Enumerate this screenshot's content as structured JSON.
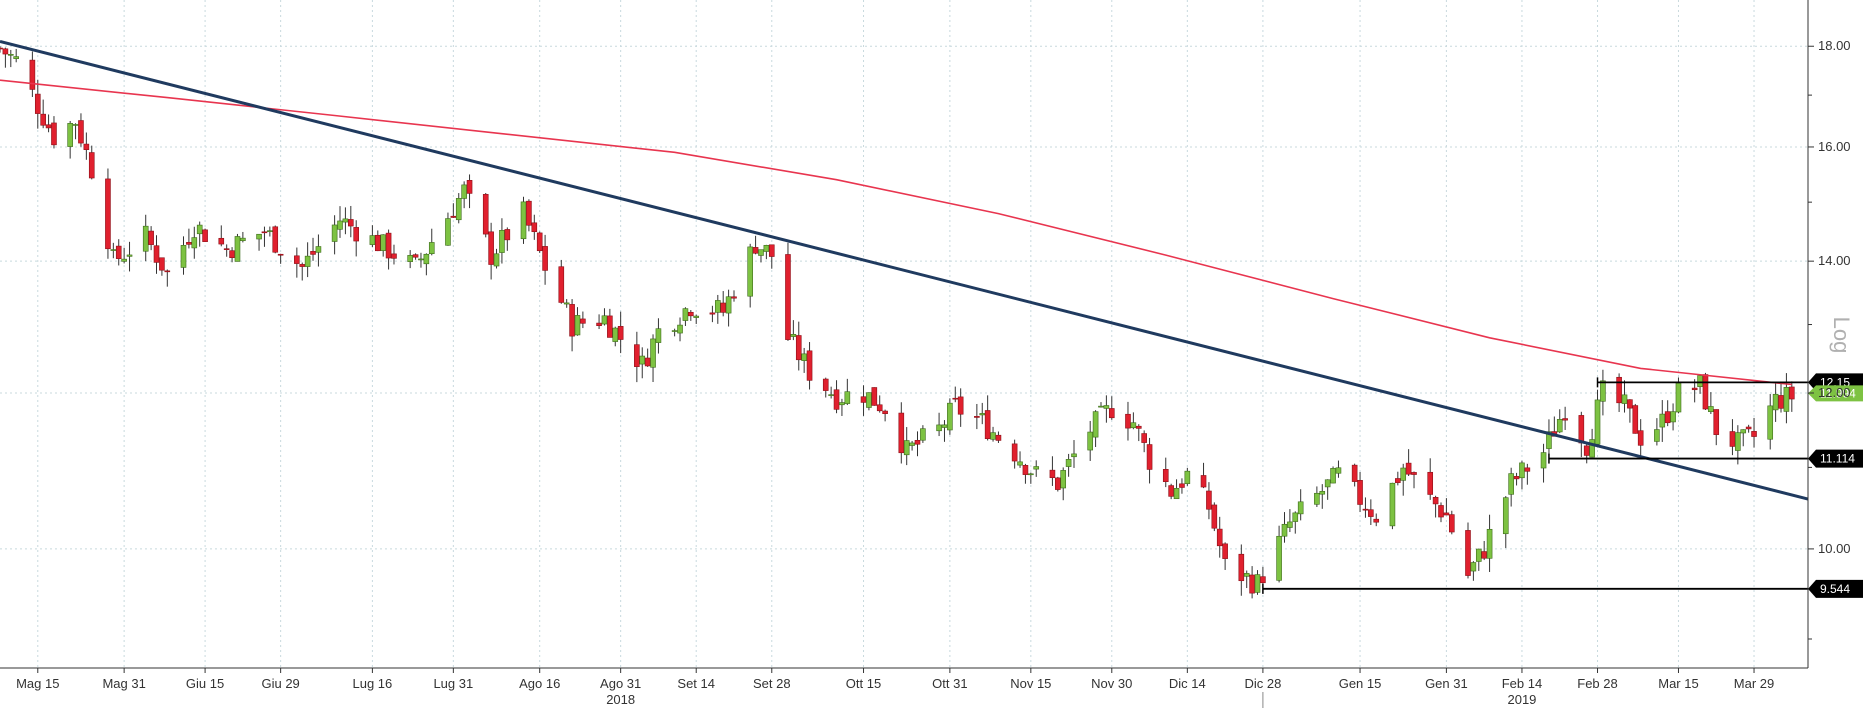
{
  "chart_data": {
    "type": "candlestick",
    "y_scale": "log",
    "y_axis_title": "Log",
    "ylim": [
      8.7,
      19.0
    ],
    "y_ticks": [
      "10.00",
      "12.00",
      "14.00",
      "16.00",
      "18.00"
    ],
    "x_start": "2018-05-08",
    "x_end": "2019-04-08",
    "grid": true,
    "x_ticks": [
      {
        "date": "2018-05-15",
        "label": "Mag 15"
      },
      {
        "date": "2018-05-31",
        "label": "Mag 31"
      },
      {
        "date": "2018-06-15",
        "label": "Giu 15"
      },
      {
        "date": "2018-06-29",
        "label": "Giu 29"
      },
      {
        "date": "2018-07-16",
        "label": "Lug 16"
      },
      {
        "date": "2018-07-31",
        "label": "Lug 31"
      },
      {
        "date": "2018-08-16",
        "label": "Ago 16"
      },
      {
        "date": "2018-08-31",
        "label": "Ago 31"
      },
      {
        "date": "2018-09-14",
        "label": "Set 14"
      },
      {
        "date": "2018-09-28",
        "label": "Set 28"
      },
      {
        "date": "2018-10-15",
        "label": "Ott 15"
      },
      {
        "date": "2018-10-31",
        "label": "Ott 31"
      },
      {
        "date": "2018-11-15",
        "label": "Nov 15"
      },
      {
        "date": "2018-11-30",
        "label": "Nov 30"
      },
      {
        "date": "2018-12-14",
        "label": "Dic 14"
      },
      {
        "date": "2018-12-28",
        "label": "Dic 28"
      },
      {
        "date": "2019-01-15",
        "label": "Gen 15"
      },
      {
        "date": "2019-01-31",
        "label": "Gen 31"
      },
      {
        "date": "2019-02-14",
        "label": "Feb 14"
      },
      {
        "date": "2019-02-28",
        "label": "Feb 28"
      },
      {
        "date": "2019-03-15",
        "label": "Mar 15"
      },
      {
        "date": "2019-03-29",
        "label": "Mar 29"
      }
    ],
    "year_labels": [
      {
        "date": "2018-08-31",
        "label": "2018"
      },
      {
        "date": "2019-02-14",
        "label": "2019"
      }
    ],
    "year_divider": "2018-12-28",
    "close_anchors": [
      [
        "2018-05-08",
        17.95
      ],
      [
        "2018-05-11",
        17.7
      ],
      [
        "2018-05-15",
        16.8
      ],
      [
        "2018-05-18",
        16.2
      ],
      [
        "2018-05-22",
        16.5
      ],
      [
        "2018-05-25",
        15.6
      ],
      [
        "2018-05-29",
        14.0
      ],
      [
        "2018-06-04",
        14.4
      ],
      [
        "2018-06-08",
        13.8
      ],
      [
        "2018-06-13",
        14.6
      ],
      [
        "2018-06-19",
        14.2
      ],
      [
        "2018-06-26",
        14.5
      ],
      [
        "2018-07-03",
        13.9
      ],
      [
        "2018-07-10",
        14.7
      ],
      [
        "2018-07-17",
        14.3
      ],
      [
        "2018-07-24",
        13.9
      ],
      [
        "2018-07-31",
        14.9
      ],
      [
        "2018-08-02",
        15.2
      ],
      [
        "2018-08-07",
        14.1
      ],
      [
        "2018-08-13",
        14.8
      ],
      [
        "2018-08-17",
        13.9
      ],
      [
        "2018-08-22",
        13.0
      ],
      [
        "2018-08-28",
        13.1
      ],
      [
        "2018-09-04",
        12.4
      ],
      [
        "2018-09-07",
        12.9
      ],
      [
        "2018-09-13",
        13.3
      ],
      [
        "2018-09-19",
        13.2
      ],
      [
        "2018-09-25",
        14.3
      ],
      [
        "2018-09-28",
        14.1
      ],
      [
        "2018-10-01",
        12.8
      ],
      [
        "2018-10-05",
        12.3
      ],
      [
        "2018-10-10",
        11.95
      ],
      [
        "2018-10-15",
        12.0
      ],
      [
        "2018-10-19",
        11.8
      ],
      [
        "2018-10-23",
        11.2
      ],
      [
        "2018-10-29",
        11.5
      ],
      [
        "2018-11-01",
        11.8
      ],
      [
        "2018-11-06",
        11.6
      ],
      [
        "2018-11-12",
        11.2
      ],
      [
        "2018-11-16",
        10.9
      ],
      [
        "2018-11-20",
        10.8
      ],
      [
        "2018-11-26",
        11.5
      ],
      [
        "2018-11-30",
        11.8
      ],
      [
        "2018-12-04",
        11.6
      ],
      [
        "2018-12-07",
        11.1
      ],
      [
        "2018-12-11",
        10.7
      ],
      [
        "2018-12-14",
        10.9
      ],
      [
        "2018-12-18",
        10.5
      ],
      [
        "2018-12-21",
        9.8
      ],
      [
        "2018-12-27",
        9.6
      ],
      [
        "2019-01-02",
        10.3
      ],
      [
        "2019-01-08",
        10.7
      ],
      [
        "2019-01-11",
        10.9
      ],
      [
        "2019-01-15",
        10.6
      ],
      [
        "2019-01-18",
        10.4
      ],
      [
        "2019-01-23",
        11.0
      ],
      [
        "2019-01-28",
        10.6
      ],
      [
        "2019-01-31",
        10.4
      ],
      [
        "2019-02-04",
        9.7
      ],
      [
        "2019-02-07",
        10.0
      ],
      [
        "2019-02-12",
        10.8
      ],
      [
        "2019-02-18",
        11.2
      ],
      [
        "2019-02-22",
        11.8
      ],
      [
        "2019-02-26",
        11.3
      ],
      [
        "2019-03-01",
        12.0
      ],
      [
        "2019-03-05",
        11.8
      ],
      [
        "2019-03-08",
        11.4
      ],
      [
        "2019-03-12",
        11.6
      ],
      [
        "2019-03-15",
        12.0
      ],
      [
        "2019-03-19",
        12.1
      ],
      [
        "2019-03-22",
        11.5
      ],
      [
        "2019-03-26",
        11.3
      ],
      [
        "2019-03-29",
        11.4
      ],
      [
        "2019-04-02",
        11.9
      ],
      [
        "2019-04-05",
        11.95
      ]
    ],
    "moving_average": {
      "color": "#e8354f",
      "points": [
        [
          "2018-05-08",
          17.3
        ],
        [
          "2018-06-08",
          16.95
        ],
        [
          "2018-07-09",
          16.6
        ],
        [
          "2018-08-09",
          16.25
        ],
        [
          "2018-09-10",
          15.9
        ],
        [
          "2018-10-10",
          15.4
        ],
        [
          "2018-11-09",
          14.8
        ],
        [
          "2018-12-10",
          14.1
        ],
        [
          "2019-01-10",
          13.4
        ],
        [
          "2019-02-08",
          12.8
        ],
        [
          "2019-03-08",
          12.35
        ],
        [
          "2019-04-05",
          12.12
        ]
      ]
    },
    "trendline": {
      "color": "#1f3a5f",
      "points": [
        [
          "2018-05-08",
          18.1
        ],
        [
          "2019-04-08",
          10.6
        ]
      ]
    },
    "horizontal_levels": [
      {
        "value": 12.15,
        "label": "12.15",
        "from": "2019-02-28",
        "to": "2019-04-08"
      },
      {
        "value": 11.114,
        "label": "11.114",
        "from": "2019-02-19",
        "to": "2019-04-08"
      },
      {
        "value": 9.544,
        "label": "9.544",
        "from": "2018-12-28",
        "to": "2019-04-08"
      }
    ],
    "last_price": {
      "value": 11.994,
      "label": "11.994",
      "color": "#7dc242"
    },
    "candle_colors": {
      "up": "#7dc242",
      "down": "#e0202e",
      "up_stroke": "#3d6b1a",
      "down_stroke": "#8c1018"
    }
  }
}
